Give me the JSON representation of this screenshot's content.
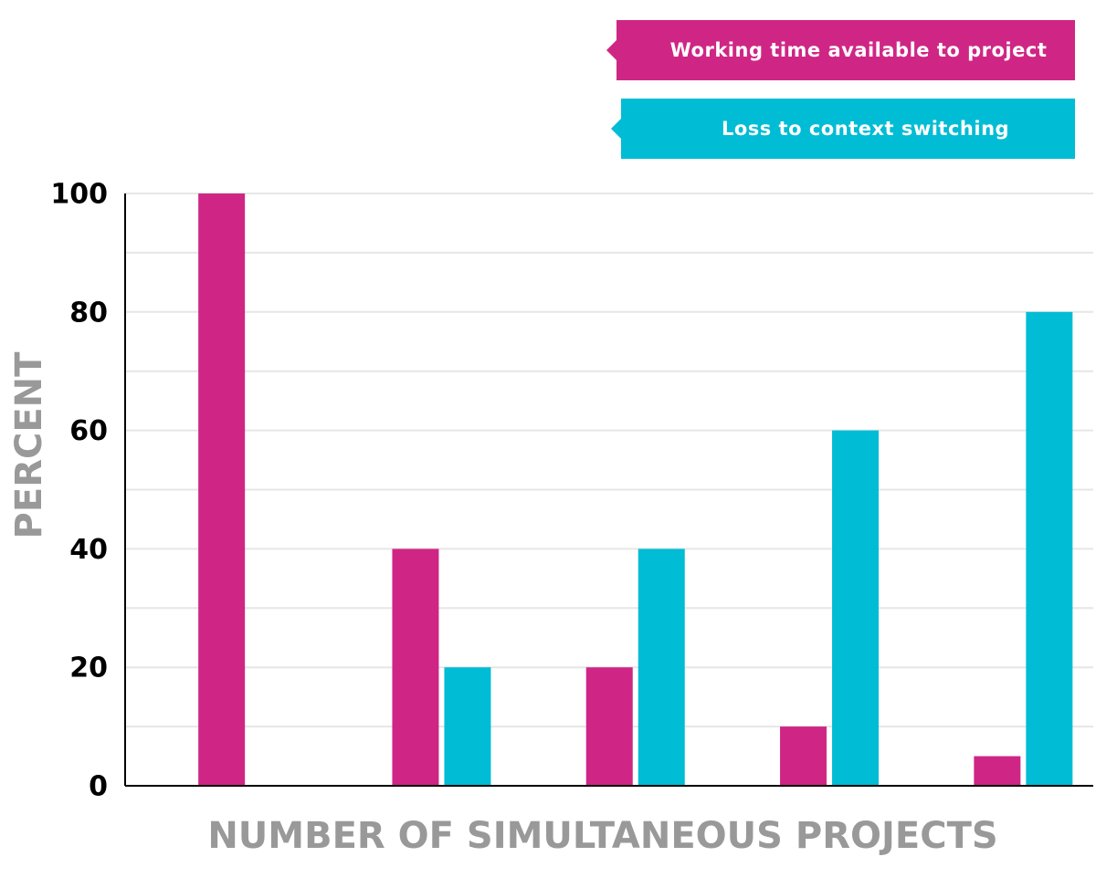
{
  "chart_data": {
    "type": "bar",
    "y_label": "PERCENT",
    "x_label": "NUMBER OF SIMULTANEOUS PROJECTS",
    "categories": [
      null,
      null,
      null,
      null,
      null
    ],
    "series": [
      {
        "name": "Working time available to project",
        "color": "#cf2685",
        "values": [
          100,
          40,
          20,
          10,
          5
        ]
      },
      {
        "name": "Loss to context switching",
        "color": "#00bcd4",
        "values": [
          0,
          20,
          40,
          60,
          80
        ]
      }
    ],
    "ylim": [
      0,
      100
    ],
    "yticks": [
      0,
      20,
      40,
      60,
      80,
      100
    ],
    "grid": true,
    "legend": "top-right"
  }
}
